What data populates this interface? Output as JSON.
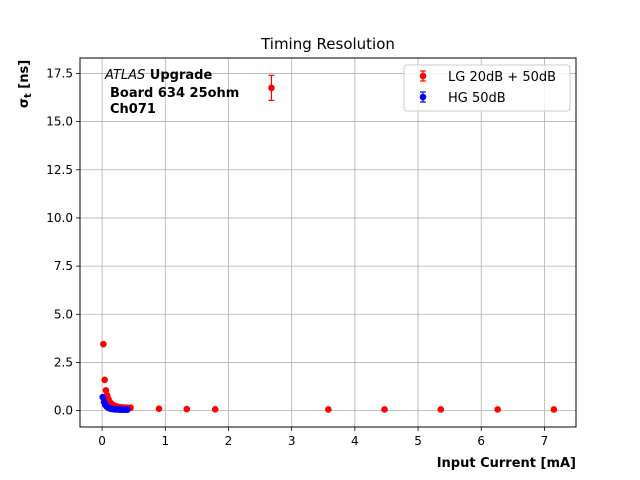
{
  "chart_data": {
    "type": "scatter",
    "title": "Timing Resolution",
    "xlabel": "Input Current [mA]",
    "ylabel": "σ",
    "ylabel_sub": "t",
    "ylabel_unit": " [ns]",
    "xlim": [
      -0.35,
      7.5
    ],
    "ylim": [
      -0.85,
      18.3
    ],
    "xticks": [
      0,
      1,
      2,
      3,
      4,
      5,
      6,
      7
    ],
    "yticks": [
      0.0,
      2.5,
      5.0,
      7.5,
      10.0,
      12.5,
      15.0,
      17.5
    ],
    "xtick_labels": [
      "0",
      "1",
      "2",
      "3",
      "4",
      "5",
      "6",
      "7"
    ],
    "ytick_labels": [
      "0.0",
      "2.5",
      "5.0",
      "7.5",
      "10.0",
      "12.5",
      "15.0",
      "17.5"
    ],
    "grid": true,
    "legend_position": "top-right",
    "annotation": {
      "line1_italic": "ATLAS",
      "line1_bold": " Upgrade",
      "line2": "Board 634 25ohm",
      "line3": "Ch071"
    },
    "series": [
      {
        "name": "LG 20dB + 50dB",
        "color": "#ff0000",
        "points": [
          {
            "x": 0.02,
            "y": 3.45,
            "err": 0.05
          },
          {
            "x": 0.04,
            "y": 1.6,
            "err": 0.05
          },
          {
            "x": 0.06,
            "y": 1.05,
            "err": 0.05
          },
          {
            "x": 0.08,
            "y": 0.8,
            "err": 0.04
          },
          {
            "x": 0.1,
            "y": 0.6,
            "err": 0.03
          },
          {
            "x": 0.12,
            "y": 0.45,
            "err": 0.03
          },
          {
            "x": 0.14,
            "y": 0.38,
            "err": 0.02
          },
          {
            "x": 0.16,
            "y": 0.32,
            "err": 0.02
          },
          {
            "x": 0.18,
            "y": 0.28,
            "err": 0.02
          },
          {
            "x": 0.2,
            "y": 0.25,
            "err": 0.02
          },
          {
            "x": 0.22,
            "y": 0.22,
            "err": 0.02
          },
          {
            "x": 0.24,
            "y": 0.2,
            "err": 0.02
          },
          {
            "x": 0.27,
            "y": 0.18,
            "err": 0.02
          },
          {
            "x": 0.3,
            "y": 0.17,
            "err": 0.02
          },
          {
            "x": 0.35,
            "y": 0.16,
            "err": 0.02
          },
          {
            "x": 0.4,
            "y": 0.15,
            "err": 0.02
          },
          {
            "x": 0.45,
            "y": 0.15,
            "err": 0.02
          },
          {
            "x": 0.9,
            "y": 0.1,
            "err": 0.02
          },
          {
            "x": 1.34,
            "y": 0.08,
            "err": 0.02
          },
          {
            "x": 1.79,
            "y": 0.07,
            "err": 0.02
          },
          {
            "x": 2.68,
            "y": 16.75,
            "err": 0.65
          },
          {
            "x": 3.58,
            "y": 0.06,
            "err": 0.02
          },
          {
            "x": 4.47,
            "y": 0.06,
            "err": 0.02
          },
          {
            "x": 5.36,
            "y": 0.06,
            "err": 0.02
          },
          {
            "x": 6.26,
            "y": 0.06,
            "err": 0.02
          },
          {
            "x": 7.15,
            "y": 0.06,
            "err": 0.02
          }
        ]
      },
      {
        "name": "HG 50dB",
        "color": "#0000ff",
        "points": [
          {
            "x": 0.01,
            "y": 0.7,
            "err": 0.04
          },
          {
            "x": 0.03,
            "y": 0.45,
            "err": 0.03
          },
          {
            "x": 0.05,
            "y": 0.3,
            "err": 0.02
          },
          {
            "x": 0.07,
            "y": 0.22,
            "err": 0.02
          },
          {
            "x": 0.09,
            "y": 0.17,
            "err": 0.02
          },
          {
            "x": 0.11,
            "y": 0.13,
            "err": 0.02
          },
          {
            "x": 0.13,
            "y": 0.11,
            "err": 0.02
          },
          {
            "x": 0.15,
            "y": 0.09,
            "err": 0.02
          },
          {
            "x": 0.17,
            "y": 0.08,
            "err": 0.02
          },
          {
            "x": 0.19,
            "y": 0.07,
            "err": 0.02
          },
          {
            "x": 0.22,
            "y": 0.06,
            "err": 0.02
          },
          {
            "x": 0.25,
            "y": 0.06,
            "err": 0.02
          },
          {
            "x": 0.28,
            "y": 0.05,
            "err": 0.02
          },
          {
            "x": 0.31,
            "y": 0.05,
            "err": 0.02
          },
          {
            "x": 0.34,
            "y": 0.05,
            "err": 0.02
          },
          {
            "x": 0.37,
            "y": 0.05,
            "err": 0.02
          },
          {
            "x": 0.4,
            "y": 0.05,
            "err": 0.02
          }
        ]
      }
    ]
  }
}
